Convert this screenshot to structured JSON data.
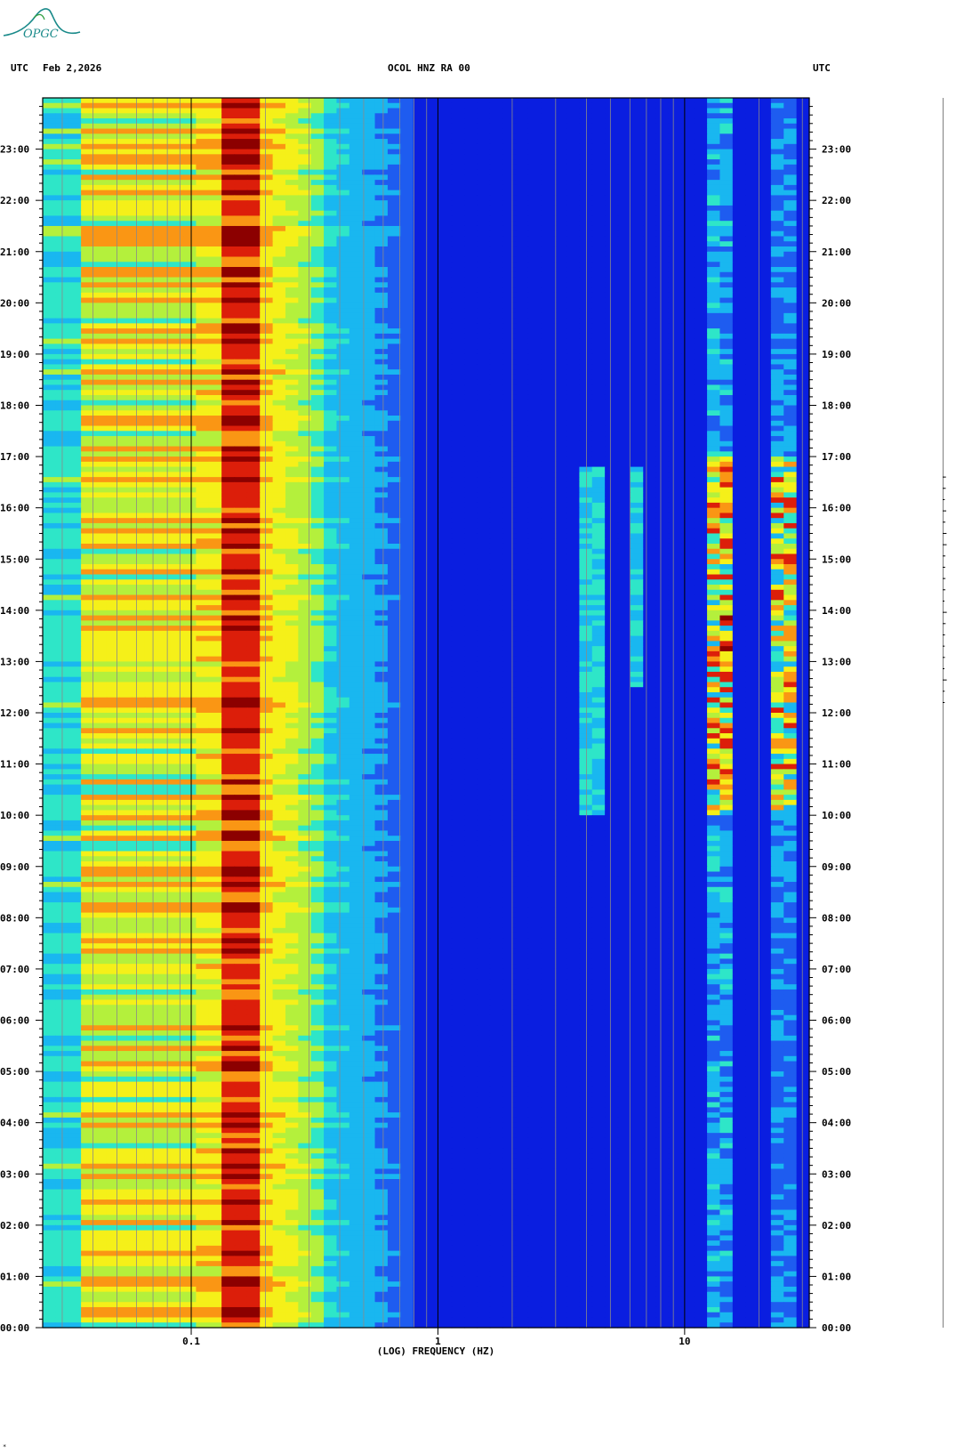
{
  "header": {
    "left_tz": "UTC",
    "date": "Feb 2,2026",
    "station": "OCOL HNZ RA 00",
    "right_tz": "UTC"
  },
  "logo": {
    "text": "OPGC",
    "color": "#1a8a8a"
  },
  "chart_data": {
    "type": "heatmap",
    "title": "OCOL HNZ RA 00",
    "xlabel": "(LOG) FREQUENCY (HZ)",
    "ylabel": "",
    "x_scale": "log",
    "xlim": [
      0.025,
      32
    ],
    "x_ticks": [
      {
        "value": 0.1,
        "label": "0.1"
      },
      {
        "value": 1,
        "label": "1"
      },
      {
        "value": 10,
        "label": "10"
      }
    ],
    "ylim_hours": [
      0,
      24
    ],
    "y_ticks": [
      "00:00",
      "01:00",
      "02:00",
      "03:00",
      "04:00",
      "05:00",
      "06:00",
      "07:00",
      "08:00",
      "09:00",
      "10:00",
      "11:00",
      "12:00",
      "13:00",
      "14:00",
      "15:00",
      "16:00",
      "17:00",
      "18:00",
      "19:00",
      "20:00",
      "21:00",
      "22:00",
      "23:00"
    ],
    "colormap": [
      "#0000a8",
      "#0a1ee0",
      "#1e5cf0",
      "#19b7f0",
      "#2ee6c8",
      "#b4f03c",
      "#f5f019",
      "#fa9614",
      "#dc1e0a",
      "#8c0000"
    ],
    "features": [
      {
        "description_label": "microseism peak",
        "freq_hz": [
          0.13,
          0.2
        ],
        "level": "high"
      },
      {
        "description_label": "harmonic",
        "freq_hz": 4.2,
        "hours": [
          10.5,
          16.8
        ]
      },
      {
        "description_label": "harmonic",
        "freq_hz": 6.3,
        "hours": [
          12.5,
          16.8
        ]
      },
      {
        "description_label": "band",
        "freq_hz": [
          12,
          16
        ],
        "hours": [
          0,
          24
        ]
      },
      {
        "description_label": "band",
        "freq_hz": [
          23,
          30
        ],
        "hours": [
          10,
          17
        ]
      }
    ]
  },
  "corner_mark": "*"
}
